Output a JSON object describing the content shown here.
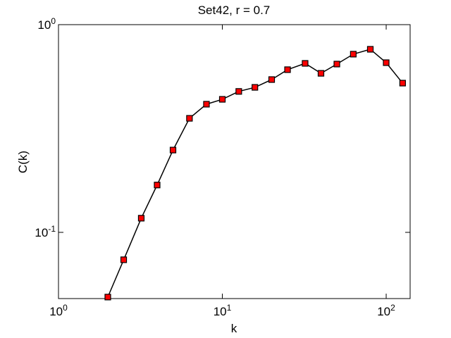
{
  "chart_data": {
    "type": "line",
    "title": "Set42, r = 0.7",
    "xlabel": "k",
    "ylabel": "C(k)",
    "xscale": "log",
    "yscale": "log",
    "x": [
      2,
      2.5,
      3.2,
      4,
      5,
      6.3,
      8,
      10,
      12.6,
      15.8,
      20,
      25,
      32,
      40,
      50,
      63,
      80,
      100,
      126
    ],
    "series": [
      {
        "name": "C(k)",
        "color": "#ff0000",
        "values": [
          0.0488,
          0.0738,
          0.117,
          0.169,
          0.249,
          0.354,
          0.414,
          0.437,
          0.477,
          0.499,
          0.544,
          0.607,
          0.651,
          0.583,
          0.646,
          0.721,
          0.761,
          0.656,
          0.523
        ]
      }
    ],
    "xlim": [
      1,
      140
    ],
    "ylim": [
      0.048,
      1
    ],
    "xticks": [
      {
        "value": 1,
        "label": "10^0"
      },
      {
        "value": 10,
        "label": "10^1"
      },
      {
        "value": 100,
        "label": "10^2"
      }
    ],
    "yticks": [
      {
        "value": 0.1,
        "label": "10^-1"
      },
      {
        "value": 1,
        "label": "10^0"
      }
    ]
  }
}
